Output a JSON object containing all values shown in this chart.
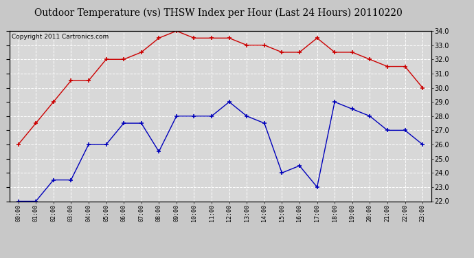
{
  "title": "Outdoor Temperature (vs) THSW Index per Hour (Last 24 Hours) 20110220",
  "copyright": "Copyright 2011 Cartronics.com",
  "hours": [
    "00:00",
    "01:00",
    "02:00",
    "03:00",
    "04:00",
    "05:00",
    "06:00",
    "07:00",
    "08:00",
    "09:00",
    "10:00",
    "11:00",
    "12:00",
    "13:00",
    "14:00",
    "15:00",
    "16:00",
    "17:00",
    "18:00",
    "19:00",
    "20:00",
    "21:00",
    "22:00",
    "23:00"
  ],
  "red_data": [
    26.0,
    27.5,
    29.0,
    30.5,
    30.5,
    32.0,
    32.0,
    32.5,
    33.5,
    34.0,
    33.5,
    33.5,
    33.5,
    33.0,
    33.0,
    32.5,
    32.5,
    33.5,
    32.5,
    32.5,
    32.0,
    31.5,
    31.5,
    30.0
  ],
  "blue_data": [
    22.0,
    22.0,
    23.5,
    23.5,
    26.0,
    26.0,
    27.5,
    27.5,
    25.5,
    28.0,
    28.0,
    28.0,
    29.0,
    28.0,
    27.5,
    24.0,
    24.5,
    23.0,
    29.0,
    28.5,
    28.0,
    27.0,
    27.0,
    26.0
  ],
  "y_min": 22.0,
  "y_max": 34.0,
  "y_ticks": [
    22.0,
    23.0,
    24.0,
    25.0,
    26.0,
    27.0,
    28.0,
    29.0,
    30.0,
    31.0,
    32.0,
    33.0,
    34.0
  ],
  "red_color": "#cc0000",
  "blue_color": "#0000bb",
  "bg_color": "#c8c8c8",
  "plot_bg_color": "#d8d8d8",
  "grid_color": "#ffffff",
  "title_fontsize": 10,
  "copyright_fontsize": 6.5
}
